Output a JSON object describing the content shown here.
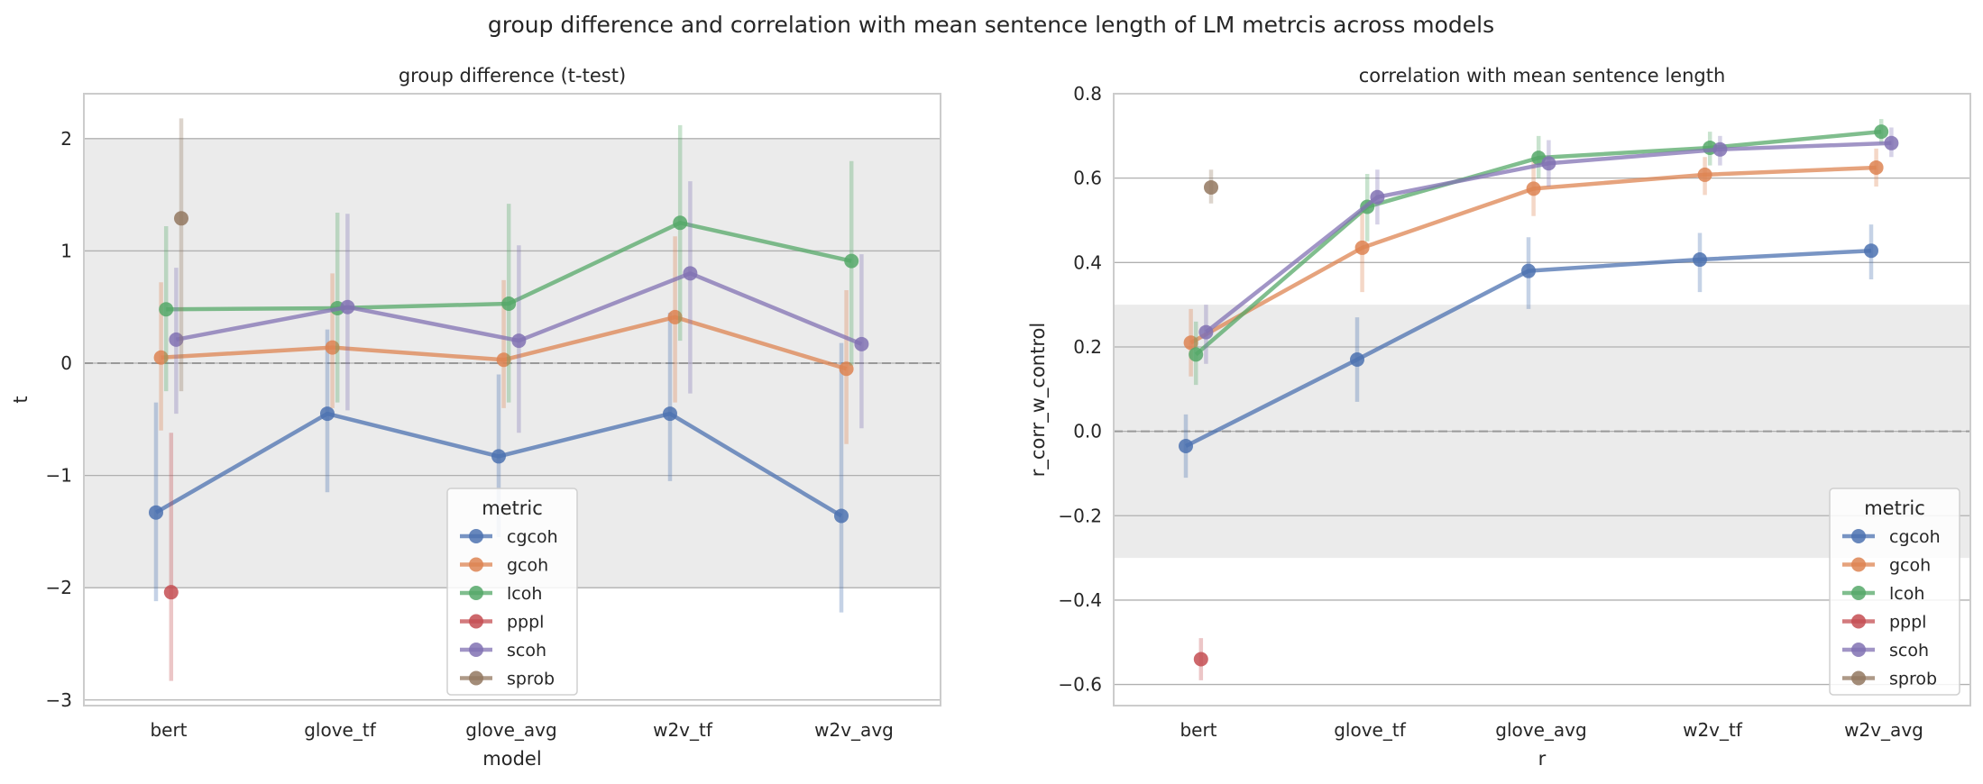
{
  "figure": {
    "suptitle": "group difference and correlation with mean sentence length of LM metrcis across models"
  },
  "colors": {
    "cgcoh": "#4c72b0",
    "gcoh": "#dd8452",
    "lcoh": "#55a868",
    "pppl": "#c44e52",
    "scoh": "#8172b3",
    "sprob": "#937860"
  },
  "chart_data": [
    {
      "type": "line",
      "title": "group difference (t-test)",
      "xlabel": "model",
      "ylabel": "t",
      "categories": [
        "bert",
        "glove_tf",
        "glove_avg",
        "w2v_tf",
        "w2v_avg"
      ],
      "ylim": [
        -3.05,
        2.4
      ],
      "yticks": [
        -3,
        -2,
        -1,
        0,
        1,
        2
      ],
      "ytick_labels": [
        "−3",
        "−2",
        "−1",
        "0",
        "1",
        "2"
      ],
      "grid": true,
      "shaded_band": [
        -2,
        2
      ],
      "reference_line": 0,
      "legend": {
        "title": "metric",
        "placement": "lower-center"
      },
      "series": [
        {
          "name": "cgcoh",
          "values": [
            -1.33,
            -0.45,
            -0.83,
            -0.45,
            -1.36
          ],
          "err_low": [
            -2.12,
            -1.15,
            -1.55,
            -1.05,
            -2.22
          ],
          "err_high": [
            -0.35,
            0.3,
            -0.1,
            0.45,
            0.18
          ]
        },
        {
          "name": "gcoh",
          "values": [
            0.05,
            0.14,
            0.03,
            0.41,
            -0.05
          ],
          "err_low": [
            -0.6,
            -0.4,
            -0.4,
            -0.35,
            -0.72
          ],
          "err_high": [
            0.72,
            0.8,
            0.74,
            1.13,
            0.65
          ]
        },
        {
          "name": "lcoh",
          "values": [
            0.48,
            0.49,
            0.53,
            1.25,
            0.91
          ],
          "err_low": [
            -0.25,
            -0.35,
            -0.35,
            0.2,
            -0.02
          ],
          "err_high": [
            1.22,
            1.34,
            1.42,
            2.12,
            1.8
          ]
        },
        {
          "name": "pppl",
          "values": [
            -2.04,
            null,
            null,
            null,
            null
          ],
          "err_low": [
            -2.83,
            null,
            null,
            null,
            null
          ],
          "err_high": [
            -0.62,
            null,
            null,
            null,
            null
          ]
        },
        {
          "name": "scoh",
          "values": [
            0.21,
            0.5,
            0.2,
            0.8,
            0.17
          ],
          "err_low": [
            -0.45,
            -0.42,
            -0.62,
            -0.27,
            -0.58
          ],
          "err_high": [
            0.85,
            1.33,
            1.05,
            1.62,
            0.97
          ]
        },
        {
          "name": "sprob",
          "values": [
            1.29,
            null,
            null,
            null,
            null
          ],
          "err_low": [
            -0.25,
            null,
            null,
            null,
            null
          ],
          "err_high": [
            2.18,
            null,
            null,
            null,
            null
          ]
        }
      ]
    },
    {
      "type": "line",
      "title": "correlation with mean sentence length",
      "xlabel": "r",
      "ylabel": "r_corr_w_control",
      "categories": [
        "bert",
        "glove_tf",
        "glove_avg",
        "w2v_tf",
        "w2v_avg"
      ],
      "ylim": [
        -0.65,
        0.8
      ],
      "yticks": [
        -0.6,
        -0.4,
        -0.2,
        0.0,
        0.2,
        0.4,
        0.6,
        0.8
      ],
      "ytick_labels": [
        "−0.6",
        "−0.4",
        "−0.2",
        "0.0",
        "0.2",
        "0.4",
        "0.6",
        "0.8"
      ],
      "grid": true,
      "shaded_band": [
        -0.3,
        0.3
      ],
      "reference_line": 0,
      "legend": {
        "title": "metric",
        "placement": "lower-right"
      },
      "series": [
        {
          "name": "cgcoh",
          "values": [
            -0.035,
            0.17,
            0.38,
            0.407,
            0.428
          ],
          "err_low": [
            -0.11,
            0.07,
            0.29,
            0.33,
            0.36
          ],
          "err_high": [
            0.04,
            0.27,
            0.46,
            0.47,
            0.49
          ]
        },
        {
          "name": "gcoh",
          "values": [
            0.21,
            0.435,
            0.575,
            0.608,
            0.625
          ],
          "err_low": [
            0.13,
            0.33,
            0.51,
            0.56,
            0.58
          ],
          "err_high": [
            0.29,
            0.53,
            0.64,
            0.65,
            0.67
          ]
        },
        {
          "name": "lcoh",
          "values": [
            0.182,
            0.532,
            0.648,
            0.672,
            0.71
          ],
          "err_low": [
            0.11,
            0.45,
            0.6,
            0.63,
            0.68
          ],
          "err_high": [
            0.26,
            0.61,
            0.7,
            0.71,
            0.74
          ]
        },
        {
          "name": "pppl",
          "values": [
            -0.54,
            null,
            null,
            null,
            null
          ],
          "err_low": [
            -0.59,
            null,
            null,
            null,
            null
          ],
          "err_high": [
            -0.49,
            null,
            null,
            null,
            null
          ]
        },
        {
          "name": "scoh",
          "values": [
            0.235,
            0.555,
            0.635,
            0.668,
            0.683
          ],
          "err_low": [
            0.16,
            0.49,
            0.58,
            0.63,
            0.65
          ],
          "err_high": [
            0.3,
            0.62,
            0.69,
            0.7,
            0.72
          ]
        },
        {
          "name": "sprob",
          "values": [
            0.578,
            null,
            null,
            null,
            null
          ],
          "err_low": [
            0.54,
            null,
            null,
            null,
            null
          ],
          "err_high": [
            0.62,
            null,
            null,
            null,
            null
          ]
        }
      ]
    }
  ]
}
